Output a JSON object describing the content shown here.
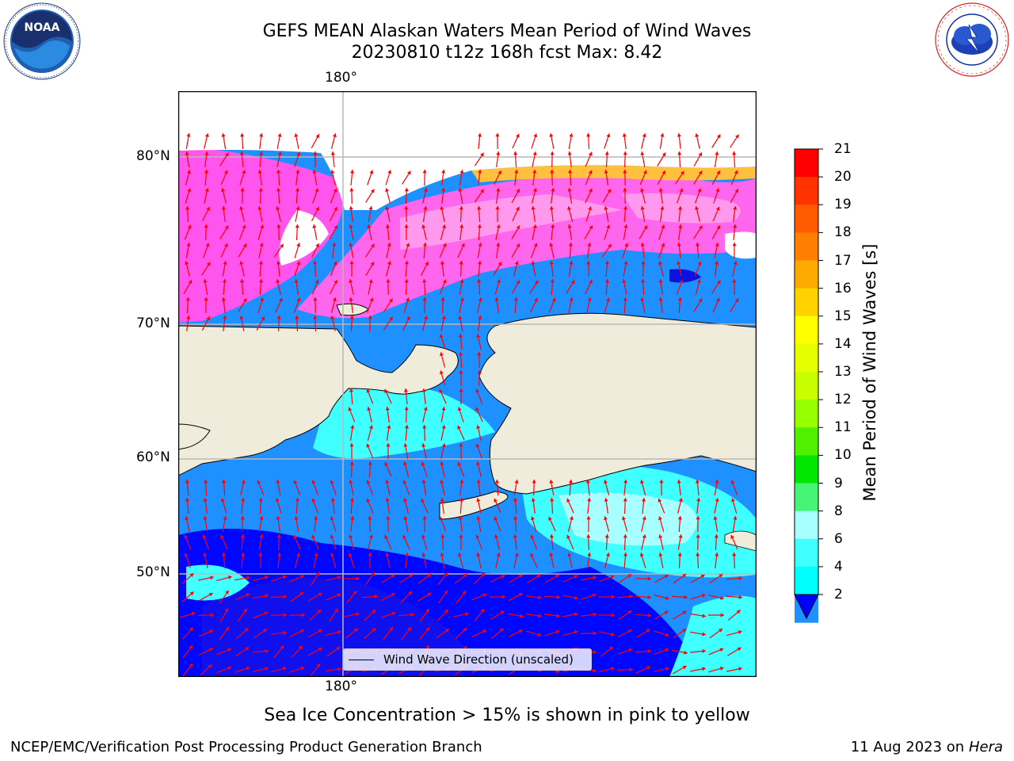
{
  "header": {
    "title_line1": "GEFS MEAN Alaskan Waters Mean Period of Wind Waves",
    "title_line2": "20230810 t12z 168h fcst   Max: 8.42"
  },
  "axes": {
    "lon_top": "180°",
    "lon_bottom": "180°",
    "lat_labels": [
      "80°N",
      "70°N",
      "60°N",
      "50°N"
    ]
  },
  "legend": {
    "line_label": "Wind Wave Direction (unscaled)"
  },
  "colorbar": {
    "label": "Mean Period of Wind Waves [s]",
    "ticks": [
      "21",
      "20",
      "19",
      "18",
      "17",
      "16",
      "15",
      "14",
      "13",
      "12",
      "11",
      "10",
      "9",
      "8",
      "6",
      "4",
      "2"
    ],
    "colors": [
      "#ff0000",
      "#ff3300",
      "#ff5a00",
      "#ff8000",
      "#ffaa00",
      "#ffd200",
      "#ffff00",
      "#e6ff00",
      "#c8ff00",
      "#96ff00",
      "#50f000",
      "#00e600",
      "#46f576",
      "#a8ffff",
      "#40ffff",
      "#00ffff",
      "#1e90ff"
    ],
    "under_color": "#0000ff"
  },
  "caption": "Sea Ice Concentration > 15% is shown in pink to yellow",
  "footer": {
    "left": "NCEP/EMC/Verification Post Processing Product Generation Branch",
    "right_date": "11 Aug 2023 on",
    "right_machine": "Hera"
  },
  "logos": {
    "noaa_text": "NOAA",
    "nws_text": "NATIONAL WEATHER SERVICE"
  }
}
